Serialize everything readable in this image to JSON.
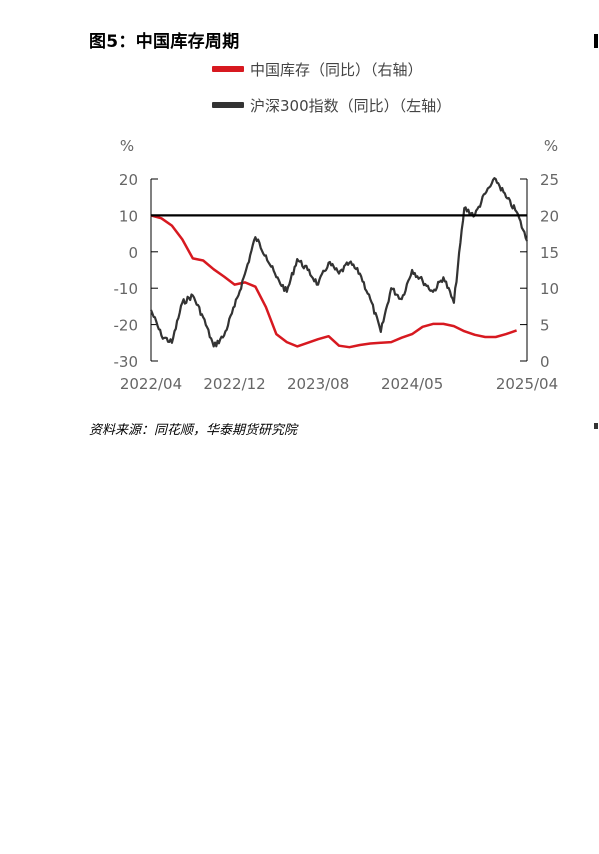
{
  "figure": {
    "title": "图5：中国库存周期",
    "source": "资料来源：同花顺，华泰期货研究院"
  },
  "chart_data": {
    "type": "line",
    "left_axis": {
      "unit": "%",
      "ylim": [
        -30,
        20
      ],
      "ticks": [
        "20",
        "10",
        "0",
        "-10",
        "-20",
        "-30"
      ]
    },
    "right_axis": {
      "unit": "%",
      "ylim": [
        0,
        25
      ],
      "ticks": [
        "25",
        "20",
        "15",
        "10",
        "5",
        "0"
      ]
    },
    "x_ticks": [
      "2022/04",
      "2022/12",
      "2023/08",
      "2024/05",
      "2025/04"
    ],
    "reference_line": {
      "axis": "right",
      "value": 20,
      "color": "#000000"
    },
    "series": [
      {
        "name": "中国库存（同比）（右轴）",
        "axis": "right",
        "color": "#d71920",
        "x": [
          "2022/04",
          "2022/05",
          "2022/06",
          "2022/07",
          "2022/08",
          "2022/09",
          "2022/10",
          "2022/11",
          "2022/12",
          "2023/01",
          "2023/02",
          "2023/03",
          "2023/04",
          "2023/05",
          "2023/06",
          "2023/07",
          "2023/08",
          "2023/09",
          "2023/10",
          "2023/11",
          "2023/12",
          "2024/01",
          "2024/02",
          "2024/03",
          "2024/04",
          "2024/05",
          "2024/06",
          "2024/07",
          "2024/08",
          "2024/09",
          "2024/10",
          "2024/11",
          "2024/12",
          "2025/01",
          "2025/02",
          "2025/03"
        ],
        "values": [
          20.0,
          19.6,
          18.6,
          16.7,
          14.1,
          13.8,
          12.6,
          11.6,
          10.5,
          10.8,
          10.2,
          7.4,
          3.7,
          2.6,
          2.0,
          2.5,
          3.0,
          3.4,
          2.1,
          1.9,
          2.2,
          2.4,
          2.5,
          2.6,
          3.2,
          3.7,
          4.7,
          5.1,
          5.1,
          4.8,
          4.1,
          3.6,
          3.3,
          3.3,
          3.7,
          4.2
        ]
      },
      {
        "name": "沪深300指数（同比）（左轴）",
        "axis": "left",
        "color": "#333333",
        "x": [
          "2022/04",
          "2022/05",
          "2022/06",
          "2022/07",
          "2022/08",
          "2022/09",
          "2022/10",
          "2022/11",
          "2022/12",
          "2023/01",
          "2023/02",
          "2023/03",
          "2023/04",
          "2023/05",
          "2023/06",
          "2023/07",
          "2023/08",
          "2023/09",
          "2023/10",
          "2023/11",
          "2023/12",
          "2024/01",
          "2024/02",
          "2024/03",
          "2024/04",
          "2024/05",
          "2024/06",
          "2024/07",
          "2024/08",
          "2024/09",
          "2024/10",
          "2024/11",
          "2024/12",
          "2025/01",
          "2025/02",
          "2025/03",
          "2025/04"
        ],
        "values": [
          -16,
          -23,
          -25,
          -14,
          -12,
          -18,
          -26,
          -23,
          -15,
          -6,
          4,
          -1,
          -7,
          -11,
          -2,
          -5,
          -9,
          -3,
          -6,
          -3,
          -6,
          -13,
          -22,
          -10,
          -13,
          -5,
          -8,
          -11,
          -7,
          -14,
          12,
          10,
          16,
          20,
          15,
          11,
          3
        ]
      }
    ]
  }
}
